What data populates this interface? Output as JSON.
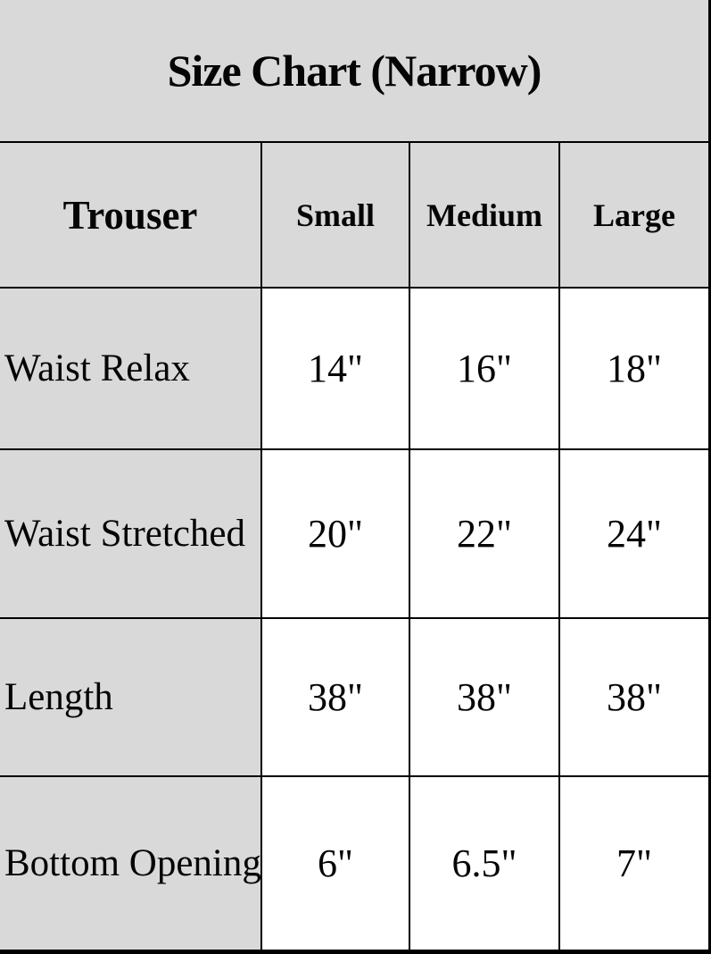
{
  "title": "Size Chart (Narrow)",
  "colors": {
    "shaded_bg": "#d9d9d9",
    "data_bg": "#ffffff",
    "border": "#000000",
    "text": "#050505"
  },
  "table": {
    "corner_header": "Trouser",
    "column_headers": [
      "Small",
      "Medium",
      "Large"
    ],
    "rows": [
      {
        "label": "Waist Relax",
        "values": [
          "14\"",
          "16\"",
          "18\""
        ]
      },
      {
        "label": "Waist Stretched",
        "values": [
          "20\"",
          "22\"",
          "24\""
        ]
      },
      {
        "label": "Length",
        "values": [
          "38\"",
          "38\"",
          "38\""
        ]
      },
      {
        "label": "Bottom Opening",
        "values": [
          "6\"",
          "6.5\"",
          "7\""
        ]
      }
    ]
  },
  "chart_data": {
    "type": "table",
    "title": "Size Chart (Narrow)",
    "corner_header": "Trouser",
    "columns": [
      "Small",
      "Medium",
      "Large"
    ],
    "row_labels": [
      "Waist Relax",
      "Waist Stretched",
      "Length",
      "Bottom Opening"
    ],
    "cells": [
      [
        "14\"",
        "16\"",
        "18\""
      ],
      [
        "20\"",
        "22\"",
        "24\""
      ],
      [
        "38\"",
        "38\"",
        "38\""
      ],
      [
        "6\"",
        "6.5\"",
        "7\""
      ]
    ],
    "units": "inches",
    "layout": "first column and header rows shaded gray, data cells white, black grid lines, thick bottom border"
  }
}
